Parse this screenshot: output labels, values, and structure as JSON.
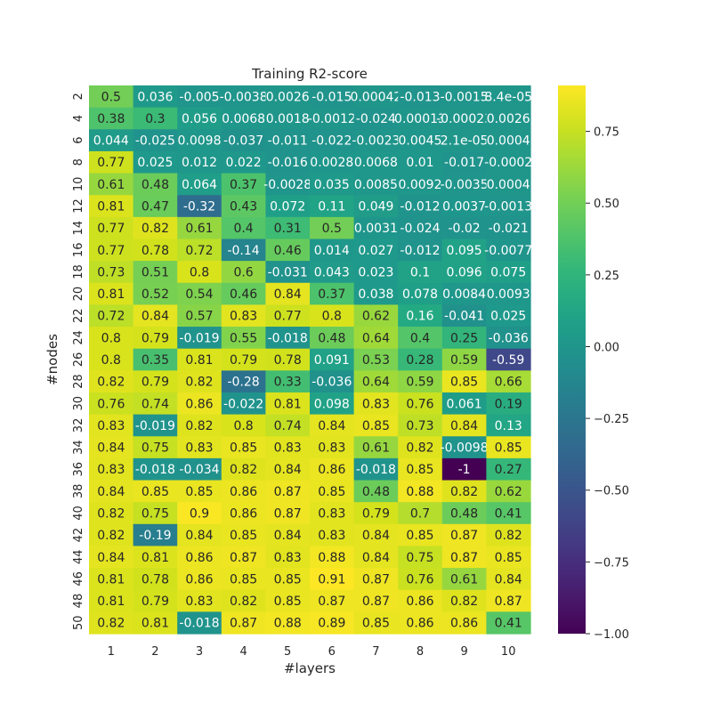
{
  "chart_data": {
    "type": "heatmap",
    "title": "Training R2-score",
    "xlabel": "#layers",
    "ylabel": "#nodes",
    "x_categories": [
      "1",
      "2",
      "3",
      "4",
      "5",
      "6",
      "7",
      "8",
      "9",
      "10"
    ],
    "y_categories": [
      "2",
      "4",
      "6",
      "8",
      "10",
      "12",
      "14",
      "16",
      "18",
      "20",
      "22",
      "24",
      "26",
      "28",
      "30",
      "32",
      "34",
      "36",
      "38",
      "40",
      "42",
      "44",
      "46",
      "48",
      "50"
    ],
    "values": [
      [
        0.5,
        0.036,
        -0.005,
        -0.0038,
        0.0026,
        -0.015,
        0.00042,
        -0.013,
        -0.0015,
        8.4e-05
      ],
      [
        0.38,
        0.3,
        0.056,
        0.0068,
        0.0018,
        -0.0012,
        -0.024,
        0.00013,
        -0.00023,
        0.0026
      ],
      [
        0.044,
        -0.025,
        0.0098,
        -0.037,
        -0.011,
        -0.022,
        -0.0023,
        0.0045,
        2.1e-05,
        0.0004
      ],
      [
        0.77,
        0.025,
        0.012,
        0.022,
        -0.016,
        0.0028,
        0.0068,
        0.01,
        -0.017,
        -0.0002
      ],
      [
        0.61,
        0.48,
        0.064,
        0.37,
        -0.0028,
        0.035,
        0.0085,
        0.0092,
        -0.0035,
        0.0004
      ],
      [
        0.81,
        0.47,
        -0.32,
        0.43,
        0.072,
        0.11,
        0.049,
        -0.012,
        0.0037,
        -0.0013
      ],
      [
        0.77,
        0.82,
        0.61,
        0.4,
        0.31,
        0.5,
        0.0031,
        -0.024,
        -0.02,
        -0.021
      ],
      [
        0.77,
        0.78,
        0.72,
        -0.14,
        0.46,
        0.014,
        0.027,
        -0.012,
        0.095,
        -0.0077
      ],
      [
        0.73,
        0.51,
        0.8,
        0.6,
        -0.031,
        0.043,
        0.023,
        0.1,
        0.096,
        0.075
      ],
      [
        0.81,
        0.52,
        0.54,
        0.46,
        0.84,
        0.37,
        0.038,
        0.078,
        0.0084,
        0.0093
      ],
      [
        0.72,
        0.84,
        0.57,
        0.83,
        0.77,
        0.8,
        0.62,
        0.16,
        -0.041,
        0.025
      ],
      [
        0.8,
        0.79,
        -0.019,
        0.55,
        -0.018,
        0.48,
        0.64,
        0.4,
        0.25,
        -0.036
      ],
      [
        0.8,
        0.35,
        0.81,
        0.79,
        0.78,
        0.091,
        0.53,
        0.28,
        0.59,
        -0.59
      ],
      [
        0.82,
        0.79,
        0.82,
        -0.28,
        0.33,
        -0.036,
        0.64,
        0.59,
        0.85,
        0.66
      ],
      [
        0.76,
        0.74,
        0.86,
        -0.022,
        0.81,
        0.098,
        0.83,
        0.76,
        0.061,
        0.19
      ],
      [
        0.83,
        -0.019,
        0.82,
        0.8,
        0.74,
        0.84,
        0.85,
        0.73,
        0.84,
        0.13
      ],
      [
        0.84,
        0.75,
        0.83,
        0.85,
        0.83,
        0.83,
        0.61,
        0.82,
        -0.0098,
        0.85
      ],
      [
        0.83,
        -0.018,
        -0.034,
        0.82,
        0.84,
        0.86,
        -0.018,
        0.85,
        -1,
        0.27
      ],
      [
        0.84,
        0.85,
        0.85,
        0.86,
        0.87,
        0.85,
        0.48,
        0.88,
        0.82,
        0.62
      ],
      [
        0.82,
        0.75,
        0.9,
        0.86,
        0.87,
        0.83,
        0.79,
        0.7,
        0.48,
        0.41
      ],
      [
        0.82,
        -0.19,
        0.84,
        0.85,
        0.84,
        0.83,
        0.84,
        0.85,
        0.87,
        0.82
      ],
      [
        0.84,
        0.81,
        0.86,
        0.87,
        0.83,
        0.88,
        0.84,
        0.75,
        0.87,
        0.85
      ],
      [
        0.81,
        0.78,
        0.86,
        0.85,
        0.85,
        0.91,
        0.87,
        0.76,
        0.61,
        0.84
      ],
      [
        0.81,
        0.79,
        0.83,
        0.82,
        0.85,
        0.87,
        0.87,
        0.86,
        0.82,
        0.87
      ],
      [
        0.82,
        0.81,
        -0.018,
        0.87,
        0.88,
        0.89,
        0.85,
        0.86,
        0.86,
        0.41
      ]
    ],
    "labels": [
      [
        "0.5",
        "0.036",
        "-0.005",
        "-0.0038",
        "0.0026",
        "-0.015",
        "0.00042",
        "-0.013",
        "-0.0015",
        "8.4e-05"
      ],
      [
        "0.38",
        "0.3",
        "0.056",
        "0.0068",
        "0.0018",
        "-0.0012",
        "-0.024",
        "0.00013",
        "-0.00023",
        "0.0026"
      ],
      [
        "0.044",
        "-0.025",
        "0.0098",
        "-0.037",
        "-0.011",
        "-0.022",
        "-0.0023",
        "0.0045",
        "2.1e-05",
        "0.0004"
      ],
      [
        "0.77",
        "0.025",
        "0.012",
        "0.022",
        "-0.016",
        "0.0028",
        "0.0068",
        "0.01",
        "-0.017",
        "-0.0002"
      ],
      [
        "0.61",
        "0.48",
        "0.064",
        "0.37",
        "-0.0028",
        "0.035",
        "0.0085",
        "0.0092",
        "-0.0035",
        "0.0004"
      ],
      [
        "0.81",
        "0.47",
        "-0.32",
        "0.43",
        "0.072",
        "0.11",
        "0.049",
        "-0.012",
        "0.0037",
        "-0.0013"
      ],
      [
        "0.77",
        "0.82",
        "0.61",
        "0.4",
        "0.31",
        "0.5",
        "0.0031",
        "-0.024",
        "-0.02",
        "-0.021"
      ],
      [
        "0.77",
        "0.78",
        "0.72",
        "-0.14",
        "0.46",
        "0.014",
        "0.027",
        "-0.012",
        "0.095",
        "-0.0077"
      ],
      [
        "0.73",
        "0.51",
        "0.8",
        "0.6",
        "-0.031",
        "0.043",
        "0.023",
        "0.1",
        "0.096",
        "0.075"
      ],
      [
        "0.81",
        "0.52",
        "0.54",
        "0.46",
        "0.84",
        "0.37",
        "0.038",
        "0.078",
        "0.0084",
        "0.0093"
      ],
      [
        "0.72",
        "0.84",
        "0.57",
        "0.83",
        "0.77",
        "0.8",
        "0.62",
        "0.16",
        "-0.041",
        "0.025"
      ],
      [
        "0.8",
        "0.79",
        "-0.019",
        "0.55",
        "-0.018",
        "0.48",
        "0.64",
        "0.4",
        "0.25",
        "-0.036"
      ],
      [
        "0.8",
        "0.35",
        "0.81",
        "0.79",
        "0.78",
        "0.091",
        "0.53",
        "0.28",
        "0.59",
        "-0.59"
      ],
      [
        "0.82",
        "0.79",
        "0.82",
        "-0.28",
        "0.33",
        "-0.036",
        "0.64",
        "0.59",
        "0.85",
        "0.66"
      ],
      [
        "0.76",
        "0.74",
        "0.86",
        "-0.022",
        "0.81",
        "0.098",
        "0.83",
        "0.76",
        "0.061",
        "0.19"
      ],
      [
        "0.83",
        "-0.019",
        "0.82",
        "0.8",
        "0.74",
        "0.84",
        "0.85",
        "0.73",
        "0.84",
        "0.13"
      ],
      [
        "0.84",
        "0.75",
        "0.83",
        "0.85",
        "0.83",
        "0.83",
        "0.61",
        "0.82",
        "-0.0098",
        "0.85"
      ],
      [
        "0.83",
        "-0.018",
        "-0.034",
        "0.82",
        "0.84",
        "0.86",
        "-0.018",
        "0.85",
        "-1",
        "0.27"
      ],
      [
        "0.84",
        "0.85",
        "0.85",
        "0.86",
        "0.87",
        "0.85",
        "0.48",
        "0.88",
        "0.82",
        "0.62"
      ],
      [
        "0.82",
        "0.75",
        "0.9",
        "0.86",
        "0.87",
        "0.83",
        "0.79",
        "0.7",
        "0.48",
        "0.41"
      ],
      [
        "0.82",
        "-0.19",
        "0.84",
        "0.85",
        "0.84",
        "0.83",
        "0.84",
        "0.85",
        "0.87",
        "0.82"
      ],
      [
        "0.84",
        "0.81",
        "0.86",
        "0.87",
        "0.83",
        "0.88",
        "0.84",
        "0.75",
        "0.87",
        "0.85"
      ],
      [
        "0.81",
        "0.78",
        "0.86",
        "0.85",
        "0.85",
        "0.91",
        "0.87",
        "0.76",
        "0.61",
        "0.84"
      ],
      [
        "0.81",
        "0.79",
        "0.83",
        "0.82",
        "0.85",
        "0.87",
        "0.87",
        "0.86",
        "0.82",
        "0.87"
      ],
      [
        "0.82",
        "0.81",
        "-0.018",
        "0.87",
        "0.88",
        "0.89",
        "0.85",
        "0.86",
        "0.86",
        "0.41"
      ]
    ],
    "colormap": "viridis",
    "vmin": -1.0,
    "vmax": 0.91,
    "colorbar_ticks": [
      0.75,
      0.5,
      0.25,
      0.0,
      -0.25,
      -0.5,
      -0.75,
      -1.0
    ],
    "colorbar_tick_labels": [
      "0.75",
      "0.50",
      "0.25",
      "0.00",
      "−0.25",
      "−0.50",
      "−0.75",
      "−1.00"
    ],
    "grid": false,
    "legend": "colorbar-right"
  }
}
